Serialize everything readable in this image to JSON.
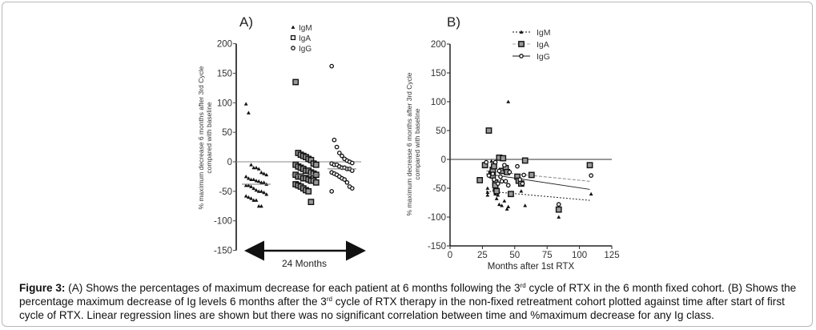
{
  "figure": {
    "caption_label": "Figure 3:",
    "caption_parts": [
      " (A) Shows the percentages of maximum decrease for each patient at 6 months following the 3",
      "rd",
      " cycle of RTX in the 6 month fixed cohort. (B) Shows the percentage maximum decrease of Ig levels 6 months after the 3",
      "rd",
      " cycle of RTX therapy in the non-fixed retreatment cohort plotted against time after start of first cycle of RTX. Linear regression lines are shown but there was no significant correlation between time and %maximum decrease for any Ig class."
    ]
  },
  "chart_data": [
    {
      "panel": "A)",
      "type": "scatter",
      "title": "A)",
      "xlabel": "24 Months",
      "ylabel_line1": "% maximum decrease 6 months after 3rd Cycle",
      "ylabel_line2": "compared with baseline",
      "ylim": [
        -150,
        200
      ],
      "yticks": [
        200,
        150,
        100,
        50,
        0,
        -50,
        -100,
        -150
      ],
      "categories": [
        "IgM",
        "IgA",
        "IgG"
      ],
      "legend": [
        "IgM",
        "IgA",
        "IgG"
      ],
      "legend_position": "top-center",
      "series": [
        {
          "name": "IgM",
          "marker": "triangle",
          "median": -38,
          "values": [
            98,
            83,
            -5,
            -10,
            -10,
            -12,
            -18,
            -20,
            -22,
            -25,
            -28,
            -30,
            -30,
            -32,
            -33,
            -35,
            -35,
            -38,
            -40,
            -40,
            -42,
            -45,
            -48,
            -50,
            -50,
            -52,
            -55,
            -58,
            -60,
            -62,
            -65,
            -65,
            -75,
            -75
          ]
        },
        {
          "name": "IgA",
          "marker": "square",
          "median": -22,
          "values": [
            135,
            15,
            12,
            10,
            8,
            5,
            3,
            -3,
            -5,
            -5,
            -8,
            -10,
            -12,
            -15,
            -15,
            -18,
            -20,
            -22,
            -22,
            -25,
            -25,
            -28,
            -28,
            -30,
            -32,
            -32,
            -35,
            -38,
            -40,
            -42,
            -45,
            -48,
            -50,
            -68
          ]
        },
        {
          "name": "IgG",
          "marker": "circle",
          "median": -12,
          "values": [
            162,
            37,
            25,
            15,
            10,
            5,
            2,
            0,
            -2,
            -3,
            -5,
            -5,
            -8,
            -10,
            -10,
            -12,
            -12,
            -15,
            -18,
            -20,
            -22,
            -25,
            -28,
            -30,
            -35,
            -42,
            -45,
            -50
          ]
        }
      ]
    },
    {
      "panel": "B)",
      "type": "scatter",
      "title": "B)",
      "xlabel": "Months after 1st RTX",
      "ylabel_line1": "% maximum decrease 6 months after 3rd Cycle",
      "ylabel_line2": "compared with baseline",
      "xlim": [
        0,
        125
      ],
      "ylim": [
        -150,
        200
      ],
      "xticks": [
        0,
        25,
        50,
        75,
        100,
        125
      ],
      "yticks": [
        200,
        150,
        100,
        50,
        0,
        -50,
        -100,
        -150
      ],
      "legend": [
        "IgM",
        "IgA",
        "IgG"
      ],
      "legend_position": "top-center",
      "series": [
        {
          "name": "IgM",
          "marker": "triangle",
          "line": "dotted",
          "regression": {
            "x": [
              28,
              108
            ],
            "y": [
              -55,
              -71
            ]
          },
          "points": [
            [
              32,
              -3
            ],
            [
              29,
              -50
            ],
            [
              29,
              -57
            ],
            [
              29,
              -62
            ],
            [
              34,
              -52
            ],
            [
              35,
              -60
            ],
            [
              36,
              -68
            ],
            [
              37,
              -62
            ],
            [
              38,
              -78
            ],
            [
              40,
              -80
            ],
            [
              42,
              -72
            ],
            [
              45,
              100
            ],
            [
              45,
              -82
            ],
            [
              44,
              -86
            ],
            [
              55,
              -55
            ],
            [
              58,
              -80
            ],
            [
              84,
              -100
            ],
            [
              109,
              -60
            ]
          ]
        },
        {
          "name": "IgA",
          "marker": "square",
          "line": "dashed",
          "regression": {
            "x": [
              28,
              108
            ],
            "y": [
              -20,
              -38
            ]
          },
          "points": [
            [
              30,
              50
            ],
            [
              23,
              -36
            ],
            [
              27,
              -10
            ],
            [
              32,
              -25
            ],
            [
              33,
              -28
            ],
            [
              33,
              -18
            ],
            [
              34,
              -12
            ],
            [
              35,
              -40
            ],
            [
              35,
              -45
            ],
            [
              36,
              -55
            ],
            [
              38,
              3
            ],
            [
              40,
              -20
            ],
            [
              41,
              2
            ],
            [
              43,
              -15
            ],
            [
              44,
              -22
            ],
            [
              47,
              -60
            ],
            [
              52,
              -30
            ],
            [
              53,
              -37
            ],
            [
              55,
              -42
            ],
            [
              58,
              -2
            ],
            [
              63,
              -27
            ],
            [
              84,
              -87
            ],
            [
              108,
              -10
            ]
          ]
        },
        {
          "name": "IgG",
          "marker": "circle",
          "line": "solid",
          "regression": {
            "x": [
              28,
              108
            ],
            "y": [
              -25,
              -52
            ]
          },
          "points": [
            [
              28,
              -5
            ],
            [
              30,
              -28
            ],
            [
              33,
              -25
            ],
            [
              34,
              -35
            ],
            [
              35,
              -5
            ],
            [
              37,
              -42
            ],
            [
              38,
              -20
            ],
            [
              39,
              -30
            ],
            [
              40,
              -38
            ],
            [
              42,
              -10
            ],
            [
              43,
              -38
            ],
            [
              45,
              -45
            ],
            [
              46,
              -22
            ],
            [
              52,
              -12
            ],
            [
              54,
              -35
            ],
            [
              56,
              -42
            ],
            [
              57,
              -27
            ],
            [
              84,
              -78
            ],
            [
              109,
              -28
            ]
          ]
        }
      ]
    }
  ]
}
